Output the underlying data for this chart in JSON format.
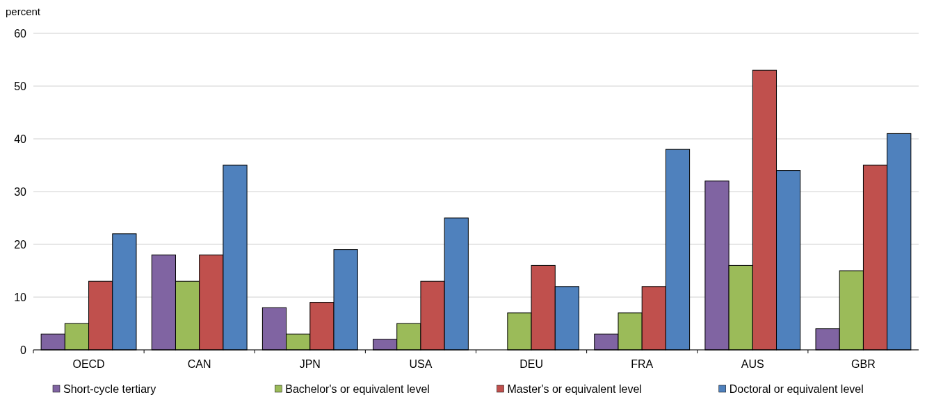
{
  "chart_data": {
    "type": "bar",
    "ylabel": "percent",
    "categories": [
      "OECD",
      "CAN",
      "JPN",
      "USA",
      "DEU",
      "FRA",
      "AUS",
      "GBR"
    ],
    "series": [
      {
        "name": "Short-cycle tertiary",
        "color": "#8064a2",
        "values": [
          3,
          18,
          8,
          2,
          null,
          3,
          32,
          4
        ]
      },
      {
        "name": "Bachelor's or equivalent level",
        "color": "#9bbb59",
        "values": [
          5,
          13,
          3,
          5,
          7,
          7,
          16,
          15
        ]
      },
      {
        "name": "Master's or equivalent level",
        "color": "#c0504d",
        "values": [
          13,
          18,
          9,
          13,
          16,
          12,
          53,
          35
        ]
      },
      {
        "name": "Doctoral or equivalent level",
        "color": "#4f81bd",
        "values": [
          22,
          35,
          19,
          25,
          12,
          38,
          34,
          41
        ]
      }
    ],
    "ylim": [
      0,
      60
    ],
    "yticks": [
      0,
      10,
      20,
      30,
      40,
      50,
      60
    ],
    "grid": "y",
    "legend": "bottom"
  }
}
